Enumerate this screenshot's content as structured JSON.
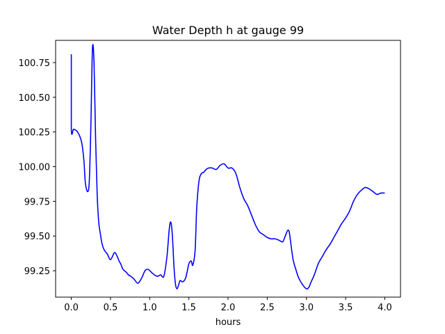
{
  "chart_data": {
    "type": "line",
    "title": "Water Depth h at gauge 99",
    "xlabel": "hours",
    "ylabel": "",
    "xlim": [
      -0.2,
      4.2
    ],
    "ylim": [
      99.06,
      100.91
    ],
    "xticks": [
      0.0,
      0.5,
      1.0,
      1.5,
      2.0,
      2.5,
      3.0,
      3.5,
      4.0
    ],
    "xtick_labels": [
      "0.0",
      "0.5",
      "1.0",
      "1.5",
      "2.0",
      "2.5",
      "3.0",
      "3.5",
      "4.0"
    ],
    "yticks": [
      99.25,
      99.5,
      99.75,
      100.0,
      100.25,
      100.5,
      100.75
    ],
    "ytick_labels": [
      "99.25",
      "99.50",
      "99.75",
      "100.00",
      "100.25",
      "100.50",
      "100.75"
    ],
    "grid": false,
    "series": [
      {
        "color": "#0000ff",
        "x": [
          0.0,
          0.0,
          0.03,
          0.08,
          0.13,
          0.16,
          0.18,
          0.21,
          0.23,
          0.25,
          0.27,
          0.29,
          0.31,
          0.33,
          0.35,
          0.37,
          0.39,
          0.42,
          0.46,
          0.5,
          0.55,
          0.58,
          0.61,
          0.63,
          0.66,
          0.7,
          0.73,
          0.76,
          0.8,
          0.85,
          0.9,
          0.94,
          0.98,
          1.02,
          1.06,
          1.1,
          1.14,
          1.18,
          1.22,
          1.25,
          1.27,
          1.29,
          1.31,
          1.33,
          1.35,
          1.37,
          1.39,
          1.42,
          1.46,
          1.5,
          1.53,
          1.55,
          1.58,
          1.6,
          1.63,
          1.66,
          1.69,
          1.72,
          1.75,
          1.8,
          1.85,
          1.9,
          1.95,
          2.0,
          2.05,
          2.1,
          2.15,
          2.2,
          2.25,
          2.3,
          2.35,
          2.4,
          2.45,
          2.5,
          2.55,
          2.6,
          2.65,
          2.68,
          2.7,
          2.73,
          2.76,
          2.78,
          2.8,
          2.83,
          2.87,
          2.9,
          2.95,
          3.0,
          3.03,
          3.06,
          3.1,
          3.15,
          3.2,
          3.25,
          3.3,
          3.35,
          3.4,
          3.45,
          3.5,
          3.55,
          3.6,
          3.65,
          3.7,
          3.75,
          3.8,
          3.85,
          3.9,
          3.95,
          4.0
        ],
        "y": [
          100.81,
          100.27,
          100.27,
          100.25,
          100.18,
          100.05,
          99.88,
          99.82,
          99.9,
          100.3,
          100.85,
          100.75,
          100.2,
          99.8,
          99.6,
          99.52,
          99.45,
          99.4,
          99.37,
          99.33,
          99.38,
          99.36,
          99.32,
          99.3,
          99.26,
          99.24,
          99.22,
          99.21,
          99.19,
          99.16,
          99.2,
          99.25,
          99.26,
          99.24,
          99.22,
          99.21,
          99.22,
          99.21,
          99.35,
          99.55,
          99.6,
          99.5,
          99.28,
          99.15,
          99.12,
          99.15,
          99.18,
          99.17,
          99.2,
          99.3,
          99.32,
          99.29,
          99.4,
          99.7,
          99.9,
          99.95,
          99.96,
          99.98,
          99.99,
          99.99,
          99.98,
          100.01,
          100.02,
          99.99,
          99.99,
          99.95,
          99.85,
          99.77,
          99.72,
          99.65,
          99.58,
          99.53,
          99.51,
          99.49,
          99.48,
          99.48,
          99.47,
          99.46,
          99.46,
          99.5,
          99.54,
          99.53,
          99.45,
          99.33,
          99.25,
          99.2,
          99.15,
          99.12,
          99.13,
          99.17,
          99.22,
          99.3,
          99.35,
          99.4,
          99.44,
          99.49,
          99.54,
          99.59,
          99.63,
          99.68,
          99.75,
          99.8,
          99.83,
          99.85,
          99.84,
          99.82,
          99.8,
          99.81,
          99.81
        ]
      }
    ]
  }
}
